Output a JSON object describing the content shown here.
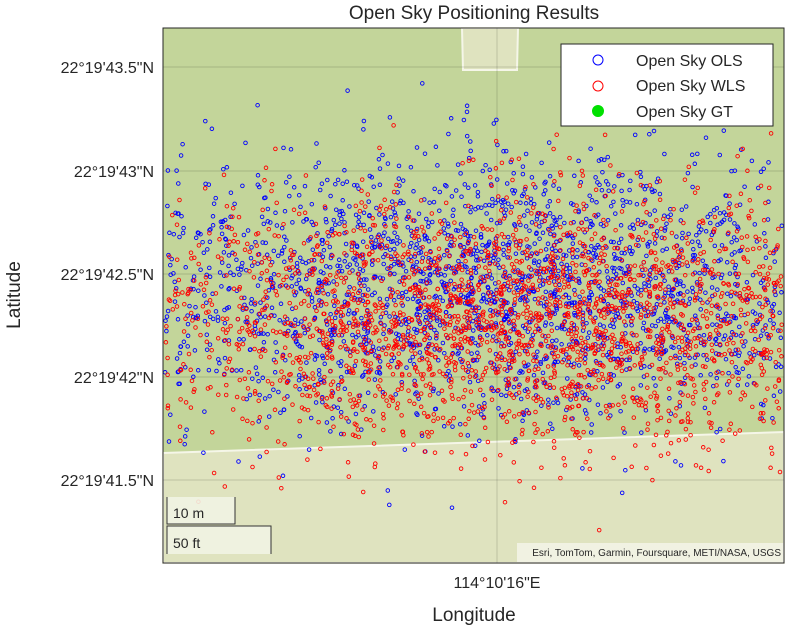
{
  "chart_data": {
    "type": "scatter",
    "title": "Open Sky Positioning Results",
    "xlabel": "Longitude",
    "ylabel": "Latitude",
    "x_ticks": [
      "114°10'16\"E"
    ],
    "y_ticks": [
      "22°19'43.5\"N",
      "22°19'43\"N",
      "22°19'42.5\"N",
      "22°19'42\"N",
      "22°19'41.5\"N"
    ],
    "x_center_arcsec": 16.0,
    "y_tick_values_arcsec": [
      43.5,
      43.0,
      42.5,
      42.0,
      41.5
    ],
    "legend_position": "top-right",
    "grid": true,
    "series": [
      {
        "name": "Open Sky OLS",
        "marker": "open-circle",
        "color": "#0000ff",
        "center_offset_arcsec": [
          0.0,
          42.42
        ],
        "spread_arcsec": [
          0.25,
          0.32
        ],
        "count": 2600
      },
      {
        "name": "Open Sky WLS",
        "marker": "open-circle",
        "color": "#ff0000",
        "center_offset_arcsec": [
          0.03,
          42.28
        ],
        "spread_arcsec": [
          0.22,
          0.3
        ],
        "count": 2600
      },
      {
        "name": "Open Sky GT",
        "marker": "filled-circle",
        "color": "#00e000",
        "points_arcsec": [
          [
            0.42,
            42.4
          ]
        ]
      }
    ]
  },
  "basemap": {
    "attribution": "Esri, TomTom, Garmin, Foursquare, METI/NASA, USGS",
    "scale_bar_metric": "10 m",
    "scale_bar_imperial": "50 ft",
    "colors": {
      "land": "#c3d59a",
      "road": "#dfe3bf",
      "road_edge": "#f5f6e8"
    }
  }
}
